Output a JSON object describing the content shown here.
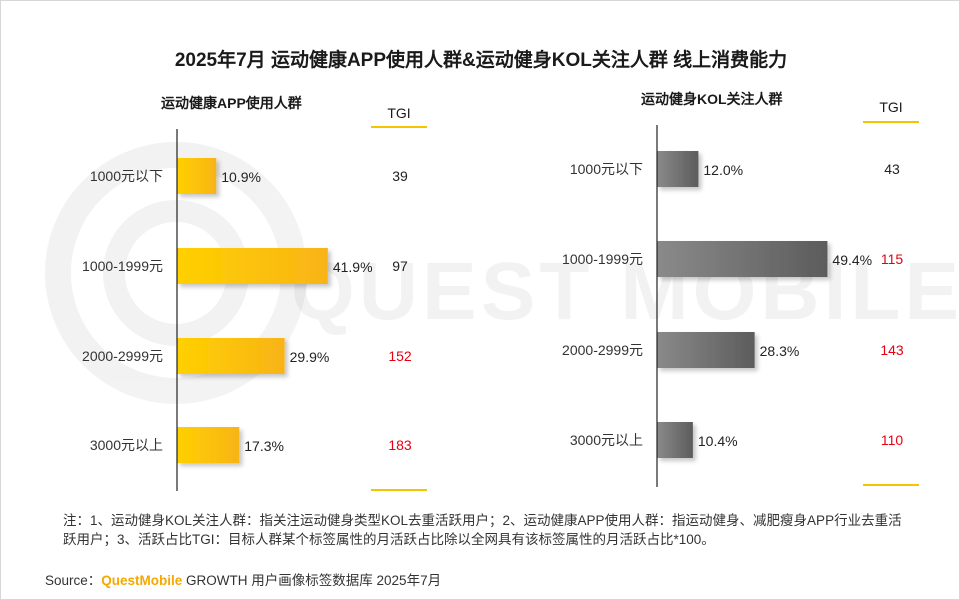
{
  "title": "2025年7月 运动健康APP使用人群&运动健身KOL关注人群  线上消费能力",
  "watermark": "QUEST MOBILE",
  "tgi_label": "TGI",
  "colors": {
    "left_bar_from": "#ffd000",
    "left_bar_to": "#f8b416",
    "right_bar_from": "#8a8a8a",
    "right_bar_to": "#5c5c5c",
    "tgi_highlight": "#e60012",
    "accent_line": "#f5c400"
  },
  "chart_data": [
    {
      "type": "bar",
      "orientation": "horizontal",
      "title": "运动健康APP使用人群",
      "categories": [
        "1000元以下",
        "1000-1999元",
        "2000-2999元",
        "3000元以上"
      ],
      "values": [
        10.9,
        41.9,
        29.9,
        17.3
      ],
      "labels": [
        "10.9%",
        "41.9%",
        "29.9%",
        "17.3%"
      ],
      "tgi": [
        39,
        97,
        152,
        183
      ],
      "tgi_highlight": [
        false,
        false,
        true,
        true
      ],
      "xlim": [
        0,
        50
      ]
    },
    {
      "type": "bar",
      "orientation": "horizontal",
      "title": "运动健身KOL关注人群",
      "categories": [
        "1000元以下",
        "1000-1999元",
        "2000-2999元",
        "3000元以上"
      ],
      "values": [
        12.0,
        49.4,
        28.3,
        10.4
      ],
      "labels": [
        "12.0%",
        "49.4%",
        "28.3%",
        "10.4%"
      ],
      "tgi": [
        43,
        115,
        143,
        110
      ],
      "tgi_highlight": [
        false,
        true,
        true,
        true
      ],
      "xlim": [
        0,
        50
      ]
    }
  ],
  "footnote": "注：1、运动健身KOL关注人群：指关注运动健身类型KOL去重活跃用户；2、运动健康APP使用人群：指运动健身、减肥瘦身APP行业去重活跃用户；3、活跃占比TGI：目标人群某个标签属性的月活跃占比除以全网具有该标签属性的月活跃占比*100。",
  "source": {
    "prefix": "Source：",
    "brand": "QuestMobile",
    "rest": " GROWTH 用户画像标签数据库 2025年7月"
  }
}
